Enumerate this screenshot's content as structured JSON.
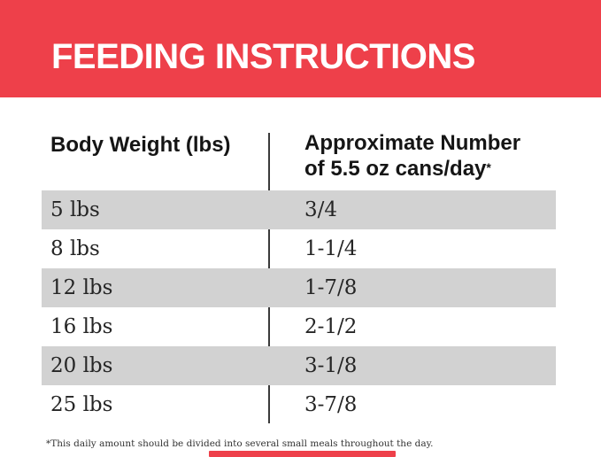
{
  "banner": {
    "title": "FEEDING INSTRUCTIONS",
    "background_color": "#ee404a",
    "text_color": "#ffffff"
  },
  "table": {
    "columns": [
      {
        "label": "Body Weight (lbs)"
      },
      {
        "label_line1": "Approximate Number",
        "label_line2": "of 5.5 oz cans/day",
        "footnote_marker": "*"
      }
    ],
    "rows": [
      {
        "weight": "5 lbs",
        "cans": "3/4"
      },
      {
        "weight": "8 lbs",
        "cans": "1-1/4"
      },
      {
        "weight": "12 lbs",
        "cans": "1-7/8"
      },
      {
        "weight": "16 lbs",
        "cans": "2-1/2"
      },
      {
        "weight": "20 lbs",
        "cans": "3-1/8"
      },
      {
        "weight": "25 lbs",
        "cans": "3-7/8"
      }
    ],
    "row_stripe_color": "#d2d2d2"
  },
  "footnote": {
    "text": "*This daily amount should be divided into several small meals throughout the day."
  },
  "chart_data": {
    "type": "table",
    "title": "FEEDING INSTRUCTIONS",
    "columns": [
      "Body Weight (lbs)",
      "Approximate Number of 5.5 oz cans/day*"
    ],
    "rows": [
      [
        "5 lbs",
        "3/4"
      ],
      [
        "8 lbs",
        "1-1/4"
      ],
      [
        "12 lbs",
        "1-7/8"
      ],
      [
        "16 lbs",
        "2-1/2"
      ],
      [
        "20 lbs",
        "3-1/8"
      ],
      [
        "25 lbs",
        "3-7/8"
      ]
    ],
    "footnote": "*This daily amount should be divided into several small meals throughout the day.",
    "accent_color": "#ee404a",
    "stripe_color": "#d2d2d2",
    "striped_rows": [
      0,
      2,
      4
    ]
  }
}
